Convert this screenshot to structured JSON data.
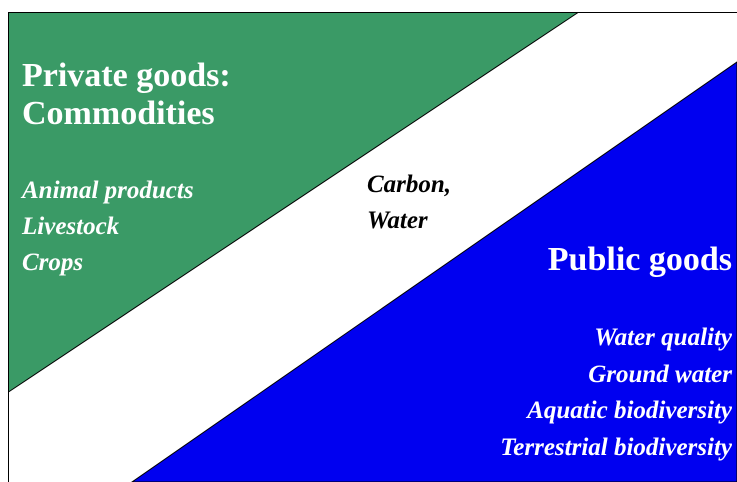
{
  "private": {
    "title": [
      "Private goods:",
      "Commodities"
    ],
    "items": [
      "Animal products",
      "Livestock",
      "Crops"
    ]
  },
  "shared": {
    "items": [
      "Carbon,",
      "Water"
    ]
  },
  "public": {
    "title": "Public goods",
    "items": [
      "Water quality",
      "Ground water",
      "Aquatic biodiversity",
      "Terrestrial biodiversity"
    ]
  }
}
